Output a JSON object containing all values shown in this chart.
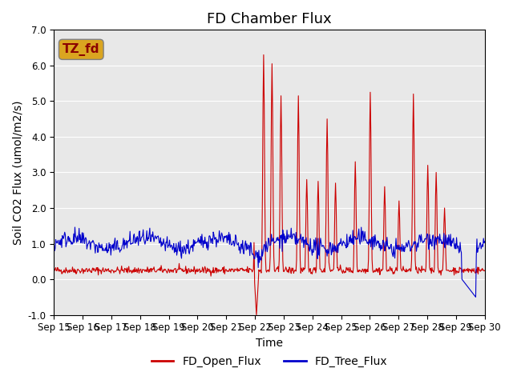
{
  "title": "FD Chamber Flux",
  "ylabel": "Soil CO2 Flux (umol/m2/s)",
  "xlabel": "Time",
  "ylim": [
    -1.0,
    7.0
  ],
  "yticks": [
    -1.0,
    0.0,
    1.0,
    2.0,
    3.0,
    4.0,
    5.0,
    6.0,
    7.0
  ],
  "xtick_labels": [
    "Sep 15",
    "Sep 16",
    "Sep 17",
    "Sep 18",
    "Sep 19",
    "Sep 20",
    "Sep 21",
    "Sep 22",
    "Sep 23",
    "Sep 24",
    "Sep 25",
    "Sep 26",
    "Sep 27",
    "Sep 28",
    "Sep 29",
    "Sep 30"
  ],
  "annotation_text": "TZ_fd",
  "annotation_color": "#8B0000",
  "annotation_bg": "#DAA520",
  "line_red_label": "FD_Open_Flux",
  "line_blue_label": "FD_Tree_Flux",
  "red_color": "#CC0000",
  "blue_color": "#0000CC",
  "bg_color": "#E8E8E8",
  "title_fontsize": 13,
  "label_fontsize": 10,
  "tick_fontsize": 8.5,
  "legend_fontsize": 10
}
